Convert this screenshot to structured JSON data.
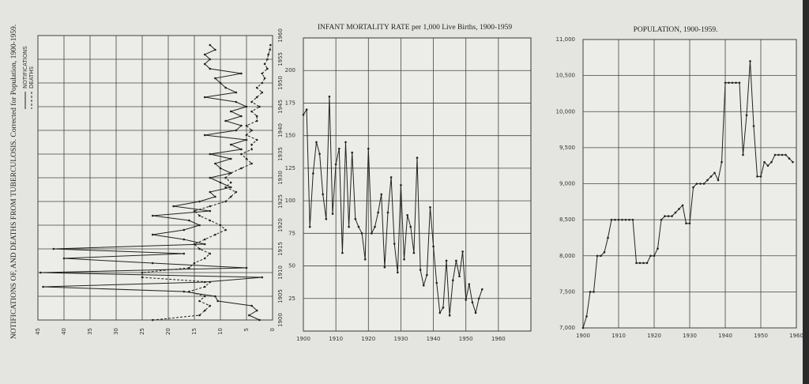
{
  "chart_data": [
    {
      "type": "line",
      "orientation": "rotated",
      "title": "NOTIFICATIONS OF, AND DEATHS FROM TUBERCULOSIS. Corrected for Population, 1900-1959.",
      "x": [
        1900,
        1901,
        1902,
        1903,
        1904,
        1905,
        1906,
        1907,
        1908,
        1909,
        1910,
        1911,
        1912,
        1913,
        1914,
        1915,
        1916,
        1917,
        1918,
        1919,
        1920,
        1921,
        1922,
        1923,
        1924,
        1925,
        1926,
        1927,
        1928,
        1929,
        1930,
        1931,
        1932,
        1933,
        1934,
        1935,
        1936,
        1937,
        1938,
        1939,
        1940,
        1941,
        1942,
        1943,
        1944,
        1945,
        1946,
        1947,
        1948,
        1949,
        1950,
        1951,
        1952,
        1953,
        1954,
        1955,
        1956,
        1957,
        1958
      ],
      "series": [
        {
          "name": "NOTIFICATIONS",
          "color": "#222222",
          "style": "solid",
          "values": [
            2.5,
            4.5,
            3,
            4,
            10.5,
            11,
            17,
            44,
            13,
            2,
            44.5,
            5,
            23,
            40,
            17,
            42,
            13,
            17,
            23,
            17,
            14,
            16,
            23,
            12,
            19,
            14,
            11,
            12,
            8,
            10,
            12,
            8,
            10,
            11,
            8,
            12,
            6,
            8,
            5,
            13,
            7,
            6,
            9,
            6,
            8,
            5,
            7,
            13,
            7,
            9,
            10,
            11,
            6,
            12,
            13,
            12,
            13,
            11,
            12
          ]
        },
        {
          "name": "DEATHS",
          "color": "#222222",
          "style": "dashed",
          "values": [
            23,
            14,
            13,
            12,
            14,
            13,
            16,
            13,
            12,
            25,
            25,
            16,
            15,
            13,
            12,
            14,
            15,
            13,
            11,
            9,
            10,
            12,
            14,
            15,
            12,
            9,
            8,
            7,
            9,
            8,
            9,
            8,
            6,
            4,
            5,
            6,
            4,
            4,
            3,
            5,
            4,
            5,
            3,
            3,
            4,
            2.5,
            4,
            3,
            2,
            3,
            2,
            1.5,
            2,
            1,
            1.5,
            1,
            0.8,
            0.5,
            0.4
          ]
        }
      ],
      "xlim": [
        1900,
        1960
      ],
      "xticks": [
        1900,
        1905,
        1910,
        1915,
        1920,
        1925,
        1930,
        1935,
        1940,
        1945,
        1950,
        1955,
        1960
      ],
      "ylim": [
        0,
        45
      ],
      "yticks": [
        45,
        40,
        35,
        30,
        25,
        20,
        15,
        10,
        5,
        0
      ],
      "grid": true
    },
    {
      "type": "line",
      "title": "INFANT MORTALITY RATE per 1,000 Live Births, 1900-1959",
      "x": [
        1900,
        1901,
        1902,
        1903,
        1904,
        1905,
        1906,
        1907,
        1908,
        1909,
        1910,
        1911,
        1912,
        1913,
        1914,
        1915,
        1916,
        1917,
        1918,
        1919,
        1920,
        1921,
        1922,
        1923,
        1924,
        1925,
        1926,
        1927,
        1928,
        1929,
        1930,
        1931,
        1932,
        1933,
        1934,
        1935,
        1936,
        1937,
        1938,
        1939,
        1940,
        1941,
        1942,
        1943,
        1944,
        1945,
        1946,
        1947,
        1948,
        1949,
        1950,
        1951,
        1952,
        1953,
        1954,
        1955
      ],
      "values": [
        166,
        170,
        80,
        121,
        145,
        136,
        105,
        86,
        180,
        90,
        128,
        140,
        60,
        145,
        80,
        137,
        86,
        80,
        75,
        55,
        140,
        75,
        80,
        91,
        105,
        49,
        91,
        118,
        67,
        45,
        112,
        55,
        89,
        80,
        60,
        133,
        47,
        35,
        43,
        95,
        65,
        37,
        14,
        18,
        54,
        12,
        39,
        54,
        42,
        61,
        24,
        36,
        22,
        14,
        25,
        32
      ],
      "color": "#222222",
      "xlim": [
        1900,
        1970
      ],
      "xticks": [
        1900,
        1910,
        1920,
        1930,
        1940,
        1950,
        1960
      ],
      "ylim": [
        0,
        225
      ],
      "yticks": [
        25,
        50,
        75,
        100,
        125,
        150,
        175,
        200
      ],
      "grid": true
    },
    {
      "type": "line",
      "title": "POPULATION, 1900-1959.",
      "x": [
        1900,
        1901,
        1902,
        1903,
        1904,
        1905,
        1906,
        1907,
        1908,
        1909,
        1910,
        1911,
        1912,
        1913,
        1914,
        1915,
        1916,
        1917,
        1918,
        1919,
        1920,
        1921,
        1922,
        1923,
        1924,
        1925,
        1926,
        1927,
        1928,
        1929,
        1930,
        1931,
        1932,
        1933,
        1934,
        1935,
        1936,
        1937,
        1938,
        1939,
        1940,
        1941,
        1942,
        1943,
        1944,
        1945,
        1946,
        1947,
        1948,
        1949,
        1950,
        1951,
        1952,
        1953,
        1954,
        1955,
        1956,
        1957,
        1958,
        1959
      ],
      "values": [
        7000,
        7160,
        7500,
        7500,
        8000,
        8000,
        8050,
        8250,
        8500,
        8500,
        8500,
        8500,
        8500,
        8500,
        8500,
        7900,
        7900,
        7900,
        7900,
        8000,
        8000,
        8100,
        8500,
        8550,
        8550,
        8550,
        8600,
        8650,
        8700,
        8450,
        8450,
        8950,
        9000,
        9000,
        9000,
        9050,
        9100,
        9150,
        9050,
        9300,
        10400,
        10400,
        10400,
        10400,
        10400,
        9400,
        9950,
        10700,
        9800,
        9100,
        9100,
        9300,
        9250,
        9300,
        9400,
        9400,
        9400,
        9400,
        9350,
        9300
      ],
      "color": "#222222",
      "xlim": [
        1900,
        1960
      ],
      "xticks": [
        1900,
        1910,
        1920,
        1930,
        1940,
        1950,
        1960
      ],
      "ylim": [
        7000,
        11000
      ],
      "yticks": [
        {
          "value": 7000,
          "label": "7,000"
        },
        {
          "value": 7500,
          "label": "7,500"
        },
        {
          "value": 8000,
          "label": "8,000"
        },
        {
          "value": 8500,
          "label": "8,500"
        },
        {
          "value": 9000,
          "label": "9,000"
        },
        {
          "value": 9500,
          "label": "9,500"
        },
        {
          "value": 10000,
          "label": "10,000"
        },
        {
          "value": 10500,
          "label": "10,500"
        },
        {
          "value": 11000,
          "label": "11,000"
        }
      ],
      "grid": true
    }
  ]
}
